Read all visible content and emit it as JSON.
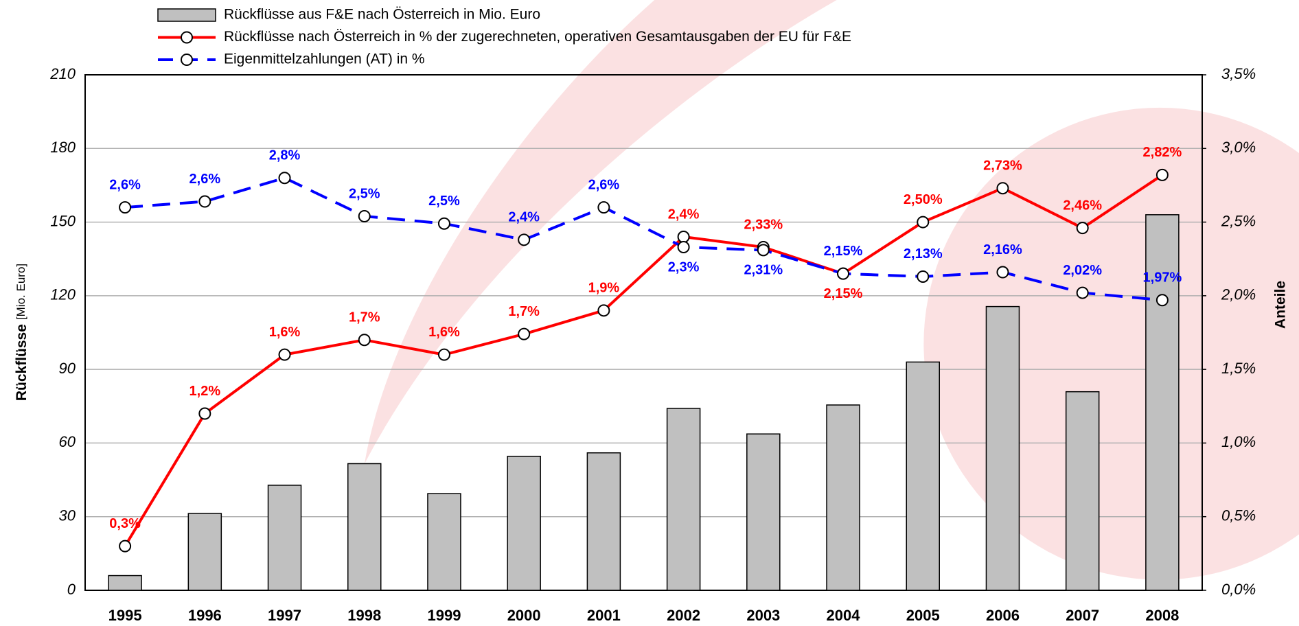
{
  "chart_data": {
    "type": "bar",
    "categories": [
      "1995",
      "1996",
      "1997",
      "1998",
      "1999",
      "2000",
      "2001",
      "2002",
      "2003",
      "2004",
      "2005",
      "2006",
      "2007",
      "2008"
    ],
    "ylabel": "Rückflüsse",
    "ylabel_unit": "[Mio. Euro]",
    "y2label": "Anteile",
    "ylim": [
      0,
      210
    ],
    "yticks": [
      0,
      30,
      60,
      90,
      120,
      150,
      180,
      210
    ],
    "y2lim": [
      0,
      3.5
    ],
    "y2ticks": [
      {
        "value": 0,
        "label": "0,0%"
      },
      {
        "value": 0.5,
        "label": "0,5%"
      },
      {
        "value": 1,
        "label": "1,0%"
      },
      {
        "value": 1.5,
        "label": "1,5%"
      },
      {
        "value": 2,
        "label": "2,0%"
      },
      {
        "value": 2.5,
        "label": "2,5%"
      },
      {
        "value": 3,
        "label": "3,0%"
      },
      {
        "value": 3.5,
        "label": "3,5%"
      }
    ],
    "grid": true,
    "series": [
      {
        "name": "Rückflüsse aus F&E nach Österreich in Mio. Euro",
        "type": "bar",
        "color": "#c0c0c0",
        "values": [
          6,
          31.3,
          42.8,
          51.6,
          39.4,
          54.6,
          56,
          74.1,
          63.7,
          75.5,
          93,
          115.6,
          80.9,
          153
        ]
      },
      {
        "name": "Rückflüsse nach Österreich in % der zugerechneten, operativen Gesamtausgaben der EU für F&E",
        "type": "line",
        "axis": "y2",
        "color": "#ff0000",
        "dash": false,
        "values": [
          0.3,
          1.2,
          1.6,
          1.7,
          1.6,
          1.74,
          1.9,
          2.4,
          2.33,
          2.15,
          2.5,
          2.73,
          2.46,
          2.82
        ],
        "value_labels": [
          "0,3%",
          "1,2%",
          "1,6%",
          "1,7%",
          "1,6%",
          "1,7%",
          "1,9%",
          "2,4%",
          "2,33%",
          "2,15%",
          "2,50%",
          "2,73%",
          "2,46%",
          "2,82%"
        ]
      },
      {
        "name": "Eigenmittelzahlungen (AT) in %",
        "type": "line",
        "axis": "y2",
        "color": "#0000ff",
        "dash": true,
        "values": [
          2.6,
          2.64,
          2.8,
          2.54,
          2.49,
          2.38,
          2.6,
          2.33,
          2.31,
          2.15,
          2.13,
          2.16,
          2.02,
          1.97
        ],
        "value_labels": [
          "2,6%",
          "2,6%",
          "2,8%",
          "2,5%",
          "2,5%",
          "2,4%",
          "2,6%",
          "2,3%",
          "2,31%",
          "2,15%",
          "2,13%",
          "2,16%",
          "2,02%",
          "1,97%"
        ]
      }
    ]
  }
}
